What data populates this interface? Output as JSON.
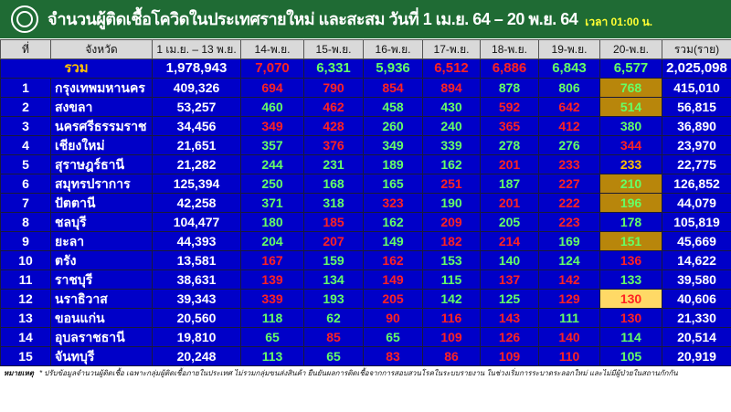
{
  "header": {
    "title": "จำนวนผู้ติดเชื้อโควิดในประเทศรายใหม่ และสะสม วันที่ 1 เม.ย. 64 – 20 พ.ย. 64",
    "time": "เวลา 01:00 น.",
    "logo_icon": "ministry-of-public-health-seal"
  },
  "colors": {
    "title_bg": "#1f6b34",
    "table_bg": "#0000c8",
    "increase": "#ff2222",
    "decrease": "#66ff66",
    "highlight": "#b8860b",
    "highlight_light": "#ffd966"
  },
  "columns": [
    "ที่",
    "จังหวัด",
    "1 เม.ย. – 13 พ.ย.",
    "14-พ.ย.",
    "15-พ.ย.",
    "16-พ.ย.",
    "17-พ.ย.",
    "18-พ.ย.",
    "19-พ.ย.",
    "20-พ.ย.",
    "รวม(ราย)"
  ],
  "total": {
    "label": "รวม",
    "values": [
      "1,978,943",
      "7,070",
      "6,331",
      "5,936",
      "6,512",
      "6,886",
      "6,843",
      "6,577",
      "2,025,098"
    ],
    "colors": [
      "w",
      "r",
      "g",
      "g",
      "r",
      "r",
      "g",
      "g",
      "w"
    ]
  },
  "rows": [
    {
      "no": "1",
      "province": "กรุงเทพมหานคร",
      "values": [
        "409,326",
        "694",
        "790",
        "854",
        "894",
        "878",
        "806",
        "768",
        "415,010"
      ],
      "colors": [
        "w",
        "r",
        "r",
        "r",
        "r",
        "g",
        "g",
        "g",
        "w"
      ],
      "highlight": "gold"
    },
    {
      "no": "2",
      "province": "สงขลา",
      "values": [
        "53,257",
        "460",
        "462",
        "458",
        "430",
        "592",
        "642",
        "514",
        "56,815"
      ],
      "colors": [
        "w",
        "g",
        "r",
        "g",
        "g",
        "r",
        "r",
        "g",
        "w"
      ],
      "highlight": "gold"
    },
    {
      "no": "3",
      "province": "นครศรีธรรมราช",
      "values": [
        "34,456",
        "349",
        "428",
        "260",
        "240",
        "365",
        "412",
        "380",
        "36,890"
      ],
      "colors": [
        "w",
        "r",
        "r",
        "g",
        "g",
        "r",
        "r",
        "g",
        "w"
      ],
      "highlight": ""
    },
    {
      "no": "4",
      "province": "เชียงใหม่",
      "values": [
        "21,651",
        "357",
        "376",
        "349",
        "339",
        "278",
        "276",
        "344",
        "23,970"
      ],
      "colors": [
        "w",
        "g",
        "r",
        "g",
        "g",
        "g",
        "g",
        "r",
        "w"
      ],
      "highlight": ""
    },
    {
      "no": "5",
      "province": "สุราษฎร์ธานี",
      "values": [
        "21,282",
        "244",
        "231",
        "189",
        "162",
        "201",
        "233",
        "233",
        "22,775"
      ],
      "colors": [
        "w",
        "g",
        "g",
        "g",
        "g",
        "r",
        "r",
        "y",
        "w"
      ],
      "highlight": ""
    },
    {
      "no": "6",
      "province": "สมุทรปราการ",
      "values": [
        "125,394",
        "250",
        "168",
        "165",
        "251",
        "187",
        "227",
        "210",
        "126,852"
      ],
      "colors": [
        "w",
        "g",
        "g",
        "g",
        "r",
        "g",
        "r",
        "g",
        "w"
      ],
      "highlight": "gold"
    },
    {
      "no": "7",
      "province": "ปัตตานี",
      "values": [
        "42,258",
        "371",
        "318",
        "323",
        "190",
        "201",
        "222",
        "196",
        "44,079"
      ],
      "colors": [
        "w",
        "g",
        "g",
        "r",
        "g",
        "r",
        "r",
        "g",
        "w"
      ],
      "highlight": "gold"
    },
    {
      "no": "8",
      "province": "ชลบุรี",
      "values": [
        "104,477",
        "180",
        "185",
        "162",
        "209",
        "205",
        "223",
        "178",
        "105,819"
      ],
      "colors": [
        "w",
        "g",
        "r",
        "g",
        "r",
        "g",
        "r",
        "g",
        "w"
      ],
      "highlight": ""
    },
    {
      "no": "9",
      "province": "ยะลา",
      "values": [
        "44,393",
        "204",
        "207",
        "149",
        "182",
        "214",
        "169",
        "151",
        "45,669"
      ],
      "colors": [
        "w",
        "g",
        "r",
        "g",
        "r",
        "r",
        "g",
        "g",
        "w"
      ],
      "highlight": "gold"
    },
    {
      "no": "10",
      "province": "ตรัง",
      "values": [
        "13,581",
        "167",
        "159",
        "162",
        "153",
        "140",
        "124",
        "136",
        "14,622"
      ],
      "colors": [
        "w",
        "r",
        "g",
        "r",
        "g",
        "g",
        "g",
        "r",
        "w"
      ],
      "highlight": ""
    },
    {
      "no": "11",
      "province": "ราชบุรี",
      "values": [
        "38,631",
        "139",
        "134",
        "149",
        "115",
        "137",
        "142",
        "133",
        "39,580"
      ],
      "colors": [
        "w",
        "r",
        "g",
        "r",
        "g",
        "r",
        "r",
        "g",
        "w"
      ],
      "highlight": ""
    },
    {
      "no": "12",
      "province": "นราธิวาส",
      "values": [
        "39,343",
        "339",
        "193",
        "205",
        "142",
        "125",
        "129",
        "130",
        "40,606"
      ],
      "colors": [
        "w",
        "r",
        "g",
        "r",
        "g",
        "g",
        "r",
        "r",
        "w"
      ],
      "highlight": "light"
    },
    {
      "no": "13",
      "province": "ขอนแก่น",
      "values": [
        "20,560",
        "118",
        "62",
        "90",
        "116",
        "143",
        "111",
        "130",
        "21,330"
      ],
      "colors": [
        "w",
        "g",
        "g",
        "r",
        "r",
        "r",
        "g",
        "r",
        "w"
      ],
      "highlight": ""
    },
    {
      "no": "14",
      "province": "อุบลราชธานี",
      "values": [
        "19,810",
        "65",
        "85",
        "65",
        "109",
        "126",
        "140",
        "114",
        "20,514"
      ],
      "colors": [
        "w",
        "g",
        "r",
        "g",
        "r",
        "r",
        "r",
        "g",
        "w"
      ],
      "highlight": ""
    },
    {
      "no": "15",
      "province": "จันทบุรี",
      "values": [
        "20,248",
        "113",
        "65",
        "83",
        "86",
        "109",
        "110",
        "105",
        "20,919"
      ],
      "colors": [
        "w",
        "g",
        "g",
        "r",
        "r",
        "r",
        "r",
        "g",
        "w"
      ],
      "highlight": ""
    }
  ],
  "footnote": {
    "label": "หมายเหตุ",
    "text": "* ปรับข้อมูลจำนวนผู้ติดเชื้อ เฉพาะกลุ่มผู้ติดเชื้อภายในประเทศ ไม่รวมกลุ่มขนส่งสินค้า ยืนยันผลการติดเชื้อจากการสอบสวนโรคในระบบรายงาน ในช่วงเริ่มการระบาดระลอกใหม่ และไม่มีผู้ป่วยในสถานกักกัน"
  }
}
